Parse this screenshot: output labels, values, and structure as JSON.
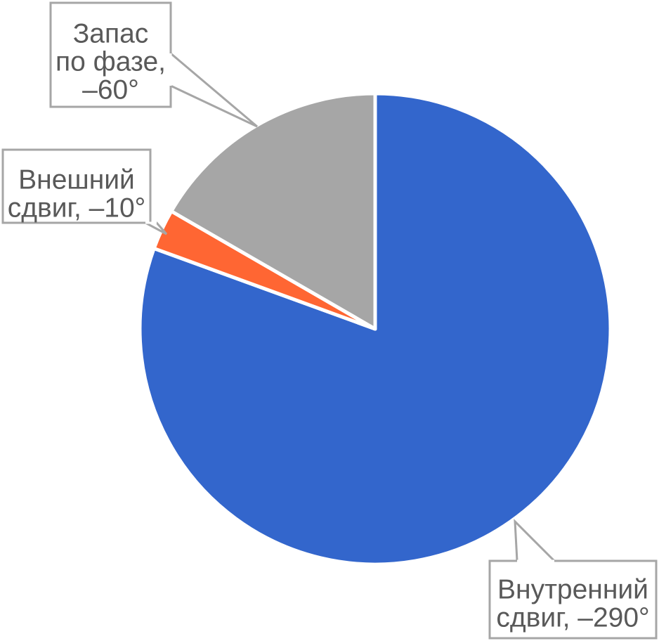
{
  "chart_data": {
    "type": "pie",
    "title": "",
    "start_angle_deg": 0,
    "direction": "clockwise",
    "slices": [
      {
        "label_lines": [
          "Внутренний",
          "сдвиг, –290°"
        ],
        "value": 290,
        "color": "#3366CC"
      },
      {
        "label_lines": [
          "Внешний",
          "сдвиг, –10°"
        ],
        "value": 10,
        "color": "#FF6633"
      },
      {
        "label_lines": [
          "Запас",
          "по фазе,",
          "–60°"
        ],
        "value": 60,
        "color": "#A6A6A6"
      }
    ],
    "label_style": "callout",
    "legend": "none"
  }
}
